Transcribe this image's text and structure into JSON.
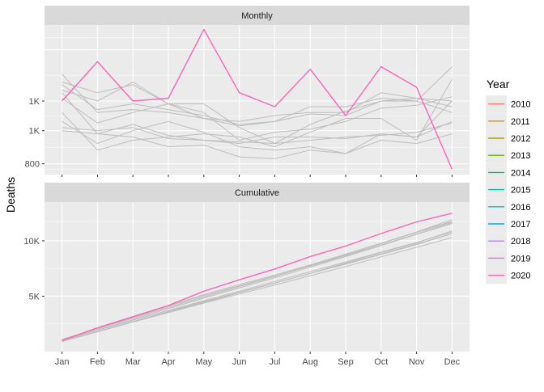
{
  "chart_data": {
    "type": "line",
    "ylabel": "Deaths",
    "legend": {
      "title": "Year",
      "position": "right",
      "entries": [
        {
          "label": "2010",
          "color": "#F8766D"
        },
        {
          "label": "2011",
          "color": "#DB8E00"
        },
        {
          "label": "2012",
          "color": "#AEA200"
        },
        {
          "label": "2013",
          "color": "#64B200"
        },
        {
          "label": "2014",
          "color": "#00BD5C"
        },
        {
          "label": "2015",
          "color": "#00C1A7"
        },
        {
          "label": "2016",
          "color": "#00BADE"
        },
        {
          "label": "2017",
          "color": "#00A6FF"
        },
        {
          "label": "2018",
          "color": "#B385FF"
        },
        {
          "label": "2019",
          "color": "#EF67EB"
        },
        {
          "label": "2020",
          "color": "#FF63B6"
        }
      ]
    },
    "x": [
      "Jan",
      "Feb",
      "Mar",
      "Apr",
      "May",
      "Jun",
      "Jul",
      "Aug",
      "Sep",
      "Oct",
      "Nov",
      "Dec"
    ],
    "highlight_color": "#FF63B6",
    "background_color": "#BDBDBD",
    "facets": [
      {
        "title": "Monthly",
        "scale": "log",
        "ylim": [
          770,
          1310
        ],
        "yticks": [
          {
            "value": 800,
            "label": "800"
          },
          {
            "value": 900,
            "label": "1K"
          },
          {
            "value": 1000,
            "label": "1K"
          },
          {
            "value": 1200,
            "label": ""
          }
        ],
        "series": [
          {
            "year": "2010",
            "values": [
              1010,
              925,
              960,
              990,
              940,
              915,
              930,
              955,
              950,
              1000,
              1010,
              980
            ]
          },
          {
            "year": "2011",
            "values": [
              1060,
              970,
              990,
              970,
              950,
              920,
              930,
              980,
              980,
              1010,
              1000,
              960
            ]
          },
          {
            "year": "2012",
            "values": [
              1030,
              890,
              920,
              885,
              870,
              860,
              880,
              880,
              875,
              890,
              880,
              930
            ]
          },
          {
            "year": "2013",
            "values": [
              1040,
              1000,
              1070,
              990,
              960,
              870,
              895,
              905,
              930,
              975,
              985,
              1015
            ]
          },
          {
            "year": "2014",
            "values": [
              910,
              900,
              910,
              875,
              870,
              865,
              860,
              870,
              880,
              885,
              895,
              925
            ]
          },
          {
            "year": "2015",
            "values": [
              1100,
              960,
              970,
              960,
              940,
              930,
              950,
              960,
              960,
              1030,
              1010,
              1000
            ]
          },
          {
            "year": "2016",
            "values": [
              960,
              840,
              870,
              880,
              890,
              880,
              850,
              895,
              940,
              940,
              870,
              1080
            ]
          },
          {
            "year": "2017",
            "values": [
              930,
              860,
              900,
              930,
              895,
              850,
              840,
              850,
              830,
              890,
              880,
              1000
            ]
          },
          {
            "year": "2018",
            "values": [
              1070,
              1030,
              1060,
              990,
              990,
              910,
              860,
              920,
              965,
              1000,
              1000,
              1130
            ]
          },
          {
            "year": "2019",
            "values": [
              900,
              890,
              880,
              850,
              855,
              820,
              815,
              840,
              830,
              870,
              860,
              890
            ]
          },
          {
            "year": "2020",
            "values": [
              1000,
              1150,
              1000,
              1010,
              1290,
              1030,
              980,
              1120,
              950,
              1130,
              1050,
              785
            ]
          }
        ]
      },
      {
        "title": "Cumulative",
        "scale": "linear",
        "ylim": [
          0,
          13500
        ],
        "yticks": [
          {
            "value": 5000,
            "label": "5K"
          },
          {
            "value": 10000,
            "label": "10K"
          }
        ],
        "series": [
          {
            "year": "2010",
            "values": [
              1010,
              1935,
              2895,
              3885,
              4825,
              5740,
              6670,
              7625,
              8575,
              9575,
              10585,
              11565
            ]
          },
          {
            "year": "2011",
            "values": [
              1060,
              2030,
              3020,
              3990,
              4940,
              5860,
              6790,
              7770,
              8750,
              9760,
              10760,
              11720
            ]
          },
          {
            "year": "2012",
            "values": [
              1030,
              1920,
              2840,
              3725,
              4595,
              5455,
              6335,
              7215,
              8090,
              8980,
              9860,
              10790
            ]
          },
          {
            "year": "2013",
            "values": [
              1040,
              2040,
              3110,
              4100,
              5060,
              5930,
              6825,
              7730,
              8660,
              9635,
              10620,
              11635
            ]
          },
          {
            "year": "2014",
            "values": [
              910,
              1810,
              2720,
              3595,
              4465,
              5330,
              6190,
              7060,
              7940,
              8825,
              9720,
              10645
            ]
          },
          {
            "year": "2015",
            "values": [
              1100,
              2060,
              3030,
              3990,
              4930,
              5860,
              6810,
              7770,
              8730,
              9760,
              10770,
              11770
            ]
          },
          {
            "year": "2016",
            "values": [
              960,
              1800,
              2670,
              3550,
              4440,
              5320,
              6170,
              7065,
              8005,
              8945,
              9815,
              10895
            ]
          },
          {
            "year": "2017",
            "values": [
              930,
              1790,
              2690,
              3620,
              4515,
              5365,
              6205,
              7055,
              7885,
              8775,
              9655,
              10655
            ]
          },
          {
            "year": "2018",
            "values": [
              1070,
              2100,
              3160,
              4150,
              5140,
              6050,
              6910,
              7830,
              8795,
              9795,
              10795,
              11925
            ]
          },
          {
            "year": "2019",
            "values": [
              900,
              1790,
              2670,
              3520,
              4375,
              5195,
              6010,
              6850,
              7680,
              8550,
              9410,
              10300
            ]
          },
          {
            "year": "2020",
            "values": [
              1000,
              2150,
              3150,
              4160,
              5450,
              6480,
              7460,
              8580,
              9530,
              10660,
              11710,
              12495
            ]
          }
        ]
      }
    ]
  }
}
